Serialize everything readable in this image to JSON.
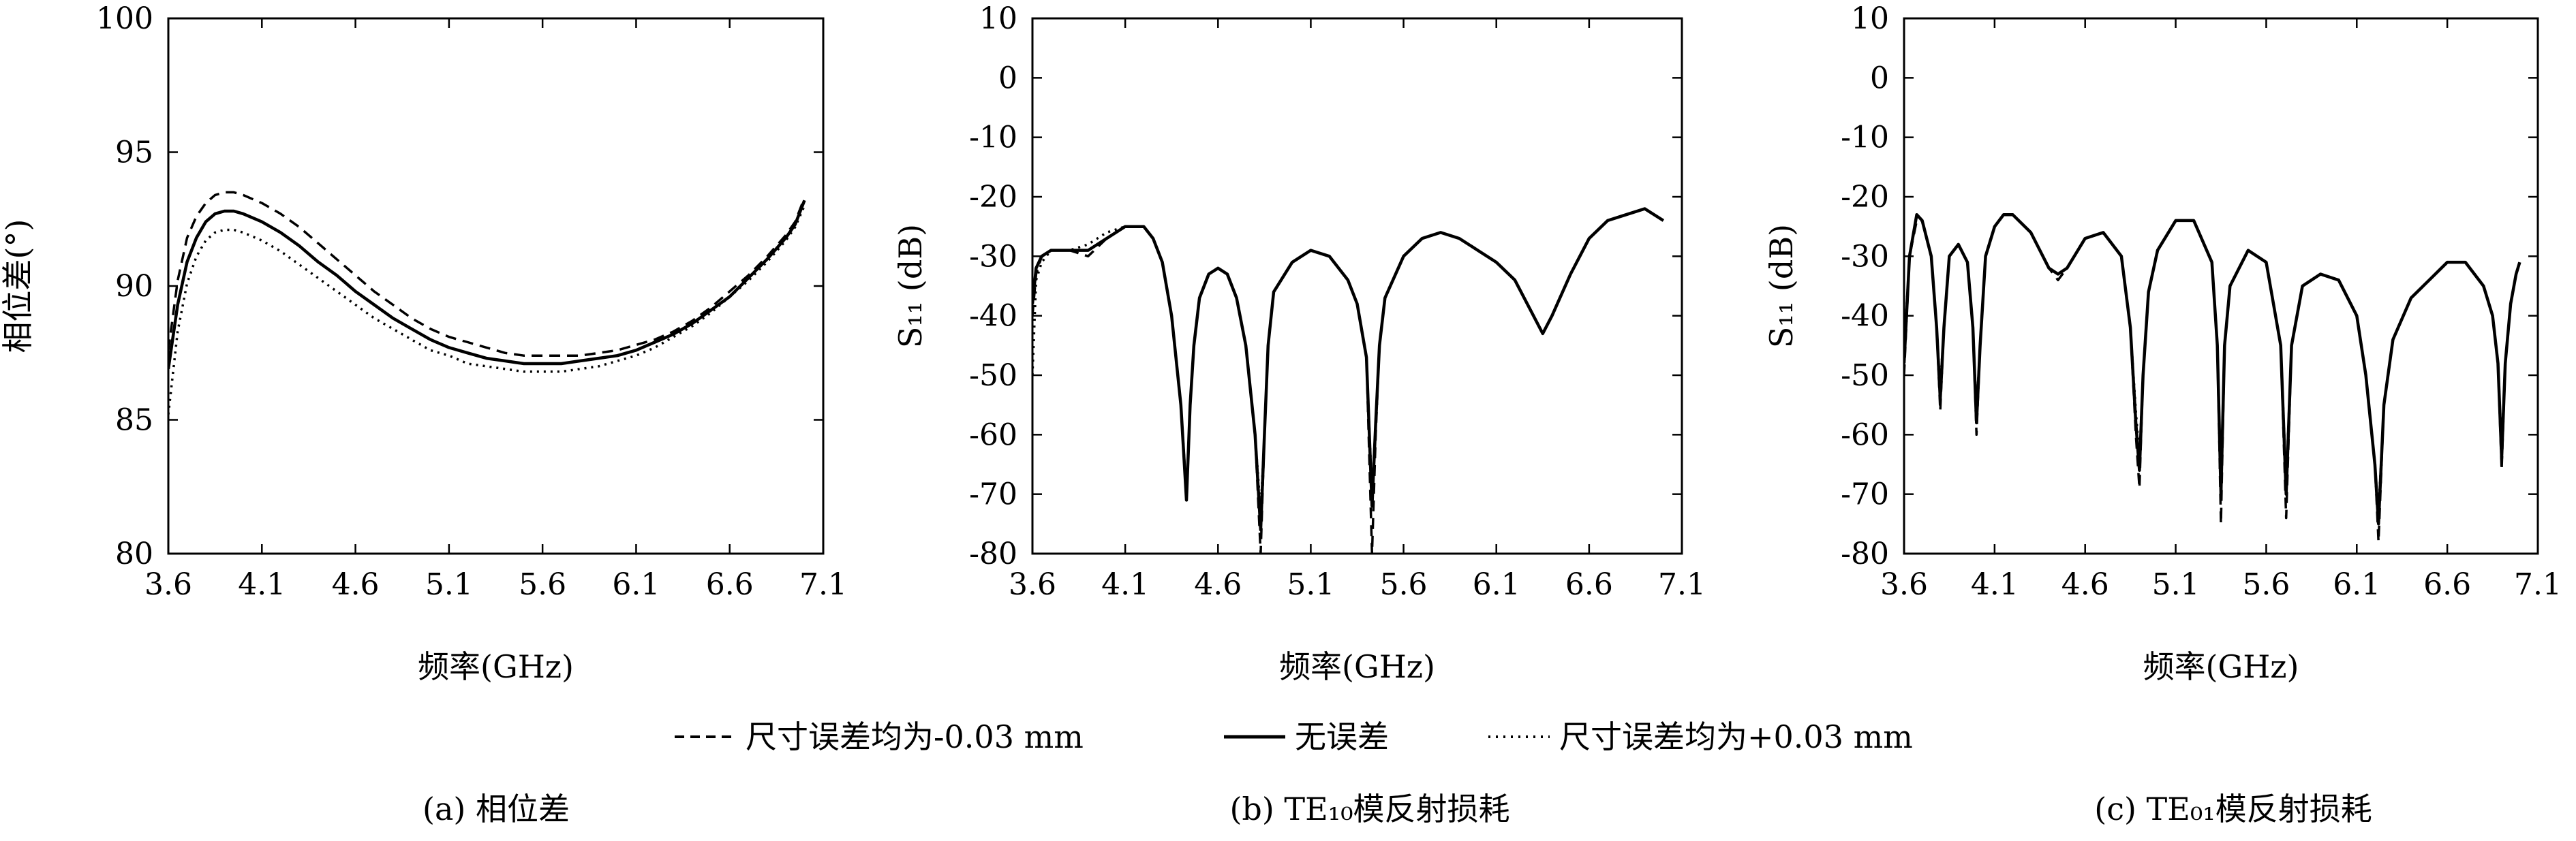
{
  "legend": {
    "items": [
      {
        "label": "尺寸误差均为-0.03 mm",
        "style": "dashed"
      },
      {
        "label": "无误差",
        "style": "solid"
      },
      {
        "label": "尺寸误差均为+0.03 mm",
        "style": "dotted"
      }
    ]
  },
  "chart_data": [
    {
      "type": "line",
      "caption": "(a) 相位差",
      "xlabel": "频率(GHz)",
      "ylabel": "相位差(°)",
      "xlim": [
        3.6,
        7.1
      ],
      "ylim": [
        80,
        100
      ],
      "xticks": [
        "3.6",
        "4.1",
        "4.6",
        "5.1",
        "5.6",
        "6.1",
        "6.6",
        "7.1"
      ],
      "yticks": [
        "80",
        "85",
        "90",
        "95",
        "100"
      ],
      "grid": false,
      "series": [
        {
          "name": "尺寸误差均为-0.03 mm",
          "style": "dashed",
          "x": [
            3.6,
            3.65,
            3.7,
            3.75,
            3.8,
            3.85,
            3.9,
            3.95,
            4.0,
            4.1,
            4.2,
            4.3,
            4.4,
            4.5,
            4.6,
            4.7,
            4.8,
            4.9,
            5.0,
            5.1,
            5.2,
            5.3,
            5.4,
            5.5,
            5.6,
            5.7,
            5.8,
            5.9,
            6.0,
            6.1,
            6.2,
            6.3,
            6.4,
            6.5,
            6.6,
            6.7,
            6.8,
            6.9,
            6.95,
            7.0
          ],
          "y": [
            87.6,
            90.2,
            91.8,
            92.6,
            93.1,
            93.4,
            93.5,
            93.5,
            93.4,
            93.1,
            92.7,
            92.2,
            91.6,
            91.0,
            90.4,
            89.8,
            89.3,
            88.8,
            88.4,
            88.1,
            87.9,
            87.7,
            87.5,
            87.4,
            87.4,
            87.4,
            87.4,
            87.5,
            87.6,
            87.8,
            88.0,
            88.3,
            88.7,
            89.2,
            89.8,
            90.4,
            91.1,
            91.9,
            92.4,
            93.3
          ]
        },
        {
          "name": "无误差",
          "style": "solid",
          "x": [
            3.6,
            3.65,
            3.7,
            3.75,
            3.8,
            3.85,
            3.9,
            3.95,
            4.0,
            4.1,
            4.2,
            4.3,
            4.4,
            4.5,
            4.6,
            4.7,
            4.8,
            4.9,
            5.0,
            5.1,
            5.2,
            5.3,
            5.4,
            5.5,
            5.6,
            5.7,
            5.8,
            5.9,
            6.0,
            6.1,
            6.2,
            6.3,
            6.4,
            6.5,
            6.6,
            6.7,
            6.8,
            6.9,
            6.95,
            7.0
          ],
          "y": [
            86.9,
            89.3,
            90.9,
            91.8,
            92.4,
            92.7,
            92.8,
            92.8,
            92.7,
            92.4,
            92.0,
            91.5,
            90.9,
            90.4,
            89.8,
            89.3,
            88.8,
            88.4,
            88.0,
            87.7,
            87.5,
            87.3,
            87.2,
            87.1,
            87.1,
            87.1,
            87.2,
            87.3,
            87.4,
            87.6,
            87.9,
            88.2,
            88.6,
            89.1,
            89.6,
            90.3,
            91.0,
            91.8,
            92.3,
            93.2
          ]
        },
        {
          "name": "尺寸误差均为+0.03 mm",
          "style": "dotted",
          "x": [
            3.6,
            3.65,
            3.7,
            3.75,
            3.8,
            3.85,
            3.9,
            3.95,
            4.0,
            4.1,
            4.2,
            4.3,
            4.4,
            4.5,
            4.6,
            4.7,
            4.8,
            4.9,
            5.0,
            5.1,
            5.2,
            5.3,
            5.4,
            5.5,
            5.6,
            5.7,
            5.8,
            5.9,
            6.0,
            6.1,
            6.2,
            6.3,
            6.4,
            6.5,
            6.6,
            6.7,
            6.8,
            6.9,
            6.95,
            7.0
          ],
          "y": [
            85.2,
            88.3,
            90.1,
            91.1,
            91.7,
            92.0,
            92.1,
            92.1,
            92.0,
            91.7,
            91.3,
            90.8,
            90.3,
            89.8,
            89.3,
            88.8,
            88.4,
            88.0,
            87.6,
            87.4,
            87.1,
            87.0,
            86.9,
            86.8,
            86.8,
            86.8,
            86.9,
            87.0,
            87.2,
            87.4,
            87.7,
            88.1,
            88.5,
            89.0,
            89.6,
            90.2,
            90.9,
            91.7,
            92.2,
            93.0
          ]
        }
      ]
    },
    {
      "type": "line",
      "caption": "(b) TE₁₀模反射损耗",
      "xlabel": "频率(GHz)",
      "ylabel": "S₁₁ (dB)",
      "xlim": [
        3.6,
        7.1
      ],
      "ylim": [
        -80,
        10
      ],
      "xticks": [
        "3.6",
        "4.1",
        "4.6",
        "5.1",
        "5.6",
        "6.1",
        "6.6",
        "7.1"
      ],
      "yticks": [
        "-80",
        "-70",
        "-60",
        "-50",
        "-40",
        "-30",
        "-20",
        "-10",
        "0",
        "10"
      ],
      "grid": false,
      "series": [
        {
          "name": "尺寸误差均为-0.03 mm",
          "style": "dashed",
          "x": [
            3.6,
            3.62,
            3.65,
            3.7,
            3.8,
            3.9,
            4.0,
            4.1,
            4.2,
            4.25,
            4.3,
            4.35,
            4.4,
            4.43,
            4.45,
            4.47,
            4.5,
            4.55,
            4.6,
            4.65,
            4.7,
            4.75,
            4.8,
            4.83,
            4.85,
            4.87,
            4.9,
            5.0,
            5.1,
            5.2,
            5.3,
            5.35,
            5.4,
            5.43,
            5.45,
            5.47,
            5.5,
            5.6,
            5.7,
            5.8,
            5.9,
            6.0,
            6.1,
            6.2,
            6.3,
            6.35,
            6.4,
            6.5,
            6.6,
            6.7,
            6.8,
            6.9,
            7.0
          ],
          "y": [
            -40,
            -33,
            -30,
            -29,
            -29,
            -30,
            -27,
            -25,
            -25,
            -27,
            -31,
            -40,
            -55,
            -70,
            -55,
            -45,
            -37,
            -33,
            -32,
            -33,
            -37,
            -45,
            -60,
            -80,
            -60,
            -45,
            -36,
            -31,
            -29,
            -30,
            -34,
            -38,
            -47,
            -80,
            -60,
            -45,
            -37,
            -30,
            -27,
            -26,
            -27,
            -29,
            -31,
            -34,
            -40,
            -43,
            -40,
            -33,
            -27,
            -24,
            -23,
            -22,
            -24
          ]
        },
        {
          "name": "无误差",
          "style": "solid",
          "x": [
            3.6,
            3.62,
            3.65,
            3.7,
            3.8,
            3.9,
            4.0,
            4.1,
            4.2,
            4.25,
            4.3,
            4.35,
            4.4,
            4.43,
            4.45,
            4.47,
            4.5,
            4.55,
            4.6,
            4.65,
            4.7,
            4.75,
            4.8,
            4.83,
            4.85,
            4.87,
            4.9,
            5.0,
            5.1,
            5.2,
            5.3,
            5.35,
            5.4,
            5.43,
            5.45,
            5.47,
            5.5,
            5.6,
            5.7,
            5.8,
            5.9,
            6.0,
            6.1,
            6.2,
            6.3,
            6.35,
            6.4,
            6.5,
            6.6,
            6.7,
            6.8,
            6.9,
            7.0
          ],
          "y": [
            -38,
            -32,
            -30,
            -29,
            -29,
            -29,
            -27,
            -25,
            -25,
            -27,
            -31,
            -40,
            -55,
            -71,
            -55,
            -45,
            -37,
            -33,
            -32,
            -33,
            -37,
            -45,
            -60,
            -76,
            -60,
            -45,
            -36,
            -31,
            -29,
            -30,
            -34,
            -38,
            -47,
            -72,
            -58,
            -45,
            -37,
            -30,
            -27,
            -26,
            -27,
            -29,
            -31,
            -34,
            -40,
            -43,
            -40,
            -33,
            -27,
            -24,
            -23,
            -22,
            -24
          ]
        },
        {
          "name": "尺寸误差均为+0.03 mm",
          "style": "dotted",
          "x": [
            3.6,
            3.62,
            3.65,
            3.7,
            3.8,
            3.9,
            4.0,
            4.1,
            4.2,
            4.25,
            4.3,
            4.35,
            4.4,
            4.43,
            4.45,
            4.47,
            4.5,
            4.55,
            4.6,
            4.65,
            4.7,
            4.75,
            4.8,
            4.83,
            4.85,
            4.87,
            4.9,
            5.0,
            5.1,
            5.2,
            5.3,
            5.35,
            5.4,
            5.43,
            5.45,
            5.47,
            5.5,
            5.6,
            5.7,
            5.8,
            5.9,
            6.0,
            6.1,
            6.2,
            6.3,
            6.35,
            6.4,
            6.5,
            6.6,
            6.7,
            6.8,
            6.9,
            7.0
          ],
          "y": [
            -50,
            -34,
            -31,
            -29,
            -29,
            -28,
            -26,
            -25,
            -25,
            -27,
            -31,
            -40,
            -55,
            -70,
            -55,
            -45,
            -37,
            -33,
            -32,
            -33,
            -37,
            -45,
            -60,
            -73,
            -60,
            -45,
            -36,
            -31,
            -29,
            -30,
            -34,
            -38,
            -47,
            -70,
            -58,
            -45,
            -37,
            -30,
            -27,
            -26,
            -27,
            -29,
            -31,
            -34,
            -40,
            -43,
            -40,
            -33,
            -27,
            -24,
            -23,
            -22,
            -24
          ]
        }
      ]
    },
    {
      "type": "line",
      "caption": "(c) TE₀₁模反射损耗",
      "xlabel": "频率(GHz)",
      "ylabel": "S₁₁ (dB)",
      "xlim": [
        3.6,
        7.1
      ],
      "ylim": [
        -80,
        10
      ],
      "xticks": [
        "3.6",
        "4.1",
        "4.6",
        "5.1",
        "5.6",
        "6.1",
        "6.6",
        "7.1"
      ],
      "yticks": [
        "-80",
        "-70",
        "-60",
        "-50",
        "-40",
        "-30",
        "-20",
        "-10",
        "0",
        "10"
      ],
      "grid": false,
      "series": [
        {
          "name": "尺寸误差均为-0.03 mm",
          "style": "dashed",
          "x": [
            3.6,
            3.63,
            3.67,
            3.7,
            3.75,
            3.78,
            3.8,
            3.82,
            3.85,
            3.9,
            3.95,
            3.98,
            4.0,
            4.02,
            4.05,
            4.1,
            4.15,
            4.2,
            4.3,
            4.4,
            4.45,
            4.5,
            4.6,
            4.7,
            4.8,
            4.85,
            4.88,
            4.9,
            4.92,
            4.95,
            5.0,
            5.1,
            5.2,
            5.3,
            5.33,
            5.35,
            5.37,
            5.4,
            5.5,
            5.6,
            5.68,
            5.71,
            5.74,
            5.8,
            5.9,
            6.0,
            6.1,
            6.15,
            6.2,
            6.22,
            6.25,
            6.3,
            6.4,
            6.5,
            6.6,
            6.7,
            6.8,
            6.85,
            6.88,
            6.9,
            6.92,
            6.95,
            6.98,
            7.0
          ],
          "y": [
            -50,
            -30,
            -24,
            -24,
            -30,
            -42,
            -56,
            -42,
            -30,
            -28,
            -31,
            -42,
            -60,
            -45,
            -30,
            -25,
            -23,
            -23,
            -26,
            -32,
            -34,
            -32,
            -27,
            -26,
            -30,
            -42,
            -60,
            -69,
            -50,
            -36,
            -29,
            -24,
            -24,
            -31,
            -45,
            -75,
            -45,
            -35,
            -29,
            -31,
            -45,
            -74,
            -45,
            -35,
            -33,
            -34,
            -40,
            -50,
            -65,
            -78,
            -55,
            -44,
            -37,
            -34,
            -31,
            -31,
            -35,
            -40,
            -48,
            -66,
            -48,
            -38,
            -33,
            -31
          ]
        },
        {
          "name": "无误差",
          "style": "solid",
          "x": [
            3.6,
            3.63,
            3.67,
            3.7,
            3.75,
            3.78,
            3.8,
            3.82,
            3.85,
            3.9,
            3.95,
            3.98,
            4.0,
            4.02,
            4.05,
            4.1,
            4.15,
            4.2,
            4.3,
            4.4,
            4.45,
            4.5,
            4.6,
            4.7,
            4.8,
            4.85,
            4.88,
            4.9,
            4.92,
            4.95,
            5.0,
            5.1,
            5.2,
            5.3,
            5.33,
            5.35,
            5.37,
            5.4,
            5.5,
            5.6,
            5.68,
            5.71,
            5.74,
            5.8,
            5.9,
            6.0,
            6.1,
            6.15,
            6.2,
            6.22,
            6.25,
            6.3,
            6.4,
            6.5,
            6.6,
            6.7,
            6.8,
            6.85,
            6.88,
            6.9,
            6.92,
            6.95,
            6.98,
            7.0
          ],
          "y": [
            -48,
            -30,
            -23,
            -24,
            -30,
            -42,
            -54,
            -42,
            -30,
            -28,
            -31,
            -42,
            -58,
            -45,
            -30,
            -25,
            -23,
            -23,
            -26,
            -32,
            -33,
            -32,
            -27,
            -26,
            -30,
            -42,
            -58,
            -66,
            -50,
            -36,
            -29,
            -24,
            -24,
            -31,
            -45,
            -70,
            -45,
            -35,
            -29,
            -31,
            -45,
            -70,
            -45,
            -35,
            -33,
            -34,
            -40,
            -50,
            -65,
            -75,
            -55,
            -44,
            -37,
            -34,
            -31,
            -31,
            -35,
            -40,
            -48,
            -64,
            -48,
            -38,
            -33,
            -31
          ]
        },
        {
          "name": "尺寸误差均为+0.03 mm",
          "style": "dotted",
          "x": [
            3.6,
            3.63,
            3.67,
            3.7,
            3.75,
            3.78,
            3.8,
            3.82,
            3.85,
            3.9,
            3.95,
            3.98,
            4.0,
            4.02,
            4.05,
            4.1,
            4.15,
            4.2,
            4.3,
            4.4,
            4.45,
            4.5,
            4.6,
            4.7,
            4.8,
            4.85,
            4.88,
            4.9,
            4.92,
            4.95,
            5.0,
            5.1,
            5.2,
            5.3,
            5.33,
            5.35,
            5.37,
            5.4,
            5.5,
            5.6,
            5.68,
            5.71,
            5.74,
            5.8,
            5.9,
            6.0,
            6.1,
            6.15,
            6.2,
            6.22,
            6.25,
            6.3,
            6.4,
            6.5,
            6.6,
            6.7,
            6.8,
            6.85,
            6.88,
            6.9,
            6.92,
            6.95,
            6.98,
            7.0
          ],
          "y": [
            -46,
            -30,
            -23,
            -24,
            -30,
            -42,
            -52,
            -42,
            -30,
            -28,
            -31,
            -42,
            -56,
            -45,
            -30,
            -25,
            -23,
            -23,
            -26,
            -32,
            -33,
            -32,
            -27,
            -26,
            -30,
            -42,
            -56,
            -64,
            -50,
            -36,
            -29,
            -24,
            -24,
            -31,
            -45,
            -68,
            -45,
            -35,
            -29,
            -31,
            -45,
            -68,
            -45,
            -35,
            -33,
            -34,
            -40,
            -50,
            -65,
            -73,
            -55,
            -44,
            -37,
            -34,
            -31,
            -31,
            -35,
            -40,
            -48,
            -62,
            -48,
            -38,
            -33,
            -31
          ]
        }
      ]
    }
  ]
}
